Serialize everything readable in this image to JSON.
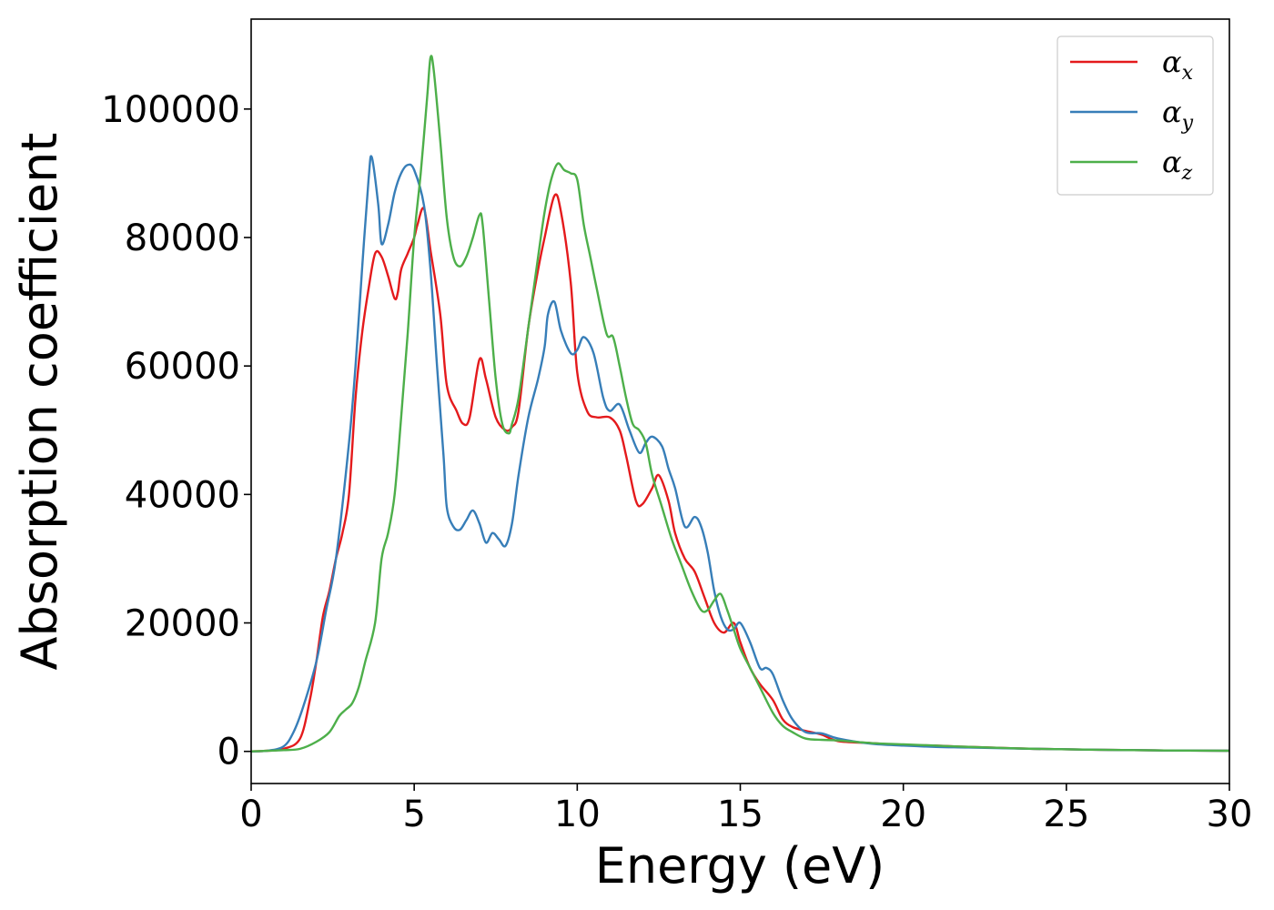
{
  "chart_data": {
    "type": "line",
    "xlabel": "Energy (eV)",
    "ylabel": "Absorption coefficient",
    "xlim": [
      0,
      30
    ],
    "ylim": [
      -5000,
      114000
    ],
    "xticks": [
      0,
      5,
      10,
      15,
      20,
      25,
      30
    ],
    "yticks": [
      0,
      20000,
      40000,
      60000,
      80000,
      100000
    ],
    "grid": false,
    "legend_position": "top-right",
    "series": [
      {
        "name": "α",
        "name_subscript": "x",
        "color": "#e41a1c",
        "x": [
          0,
          0.5,
          1.0,
          1.5,
          1.8,
          2.0,
          2.2,
          2.4,
          2.6,
          2.8,
          3.0,
          3.2,
          3.4,
          3.6,
          3.8,
          4.0,
          4.2,
          4.4,
          4.5,
          4.6,
          4.8,
          5.0,
          5.1,
          5.3,
          5.5,
          5.8,
          6.0,
          6.3,
          6.5,
          6.7,
          7.0,
          7.2,
          7.5,
          7.8,
          8.0,
          8.2,
          8.5,
          8.8,
          9.0,
          9.3,
          9.5,
          9.8,
          10.0,
          10.3,
          10.6,
          11.0,
          11.3,
          11.5,
          11.8,
          12.0,
          12.3,
          12.5,
          12.8,
          13.0,
          13.3,
          13.6,
          13.9,
          14.2,
          14.5,
          14.8,
          15.0,
          15.3,
          15.6,
          16.0,
          16.3,
          16.6,
          17.0,
          17.5,
          18.0,
          19.0,
          20.0,
          21.0,
          22.0,
          24.0,
          26.0,
          28.0,
          30.0
        ],
        "values": [
          0,
          100,
          400,
          2000,
          8000,
          14000,
          21000,
          25000,
          30000,
          34000,
          40000,
          55000,
          65000,
          72000,
          77500,
          77000,
          74000,
          70500,
          71500,
          75000,
          77500,
          80000,
          82000,
          84500,
          78000,
          68000,
          57000,
          53000,
          51000,
          52000,
          61000,
          58000,
          52000,
          50000,
          50500,
          53000,
          66000,
          75000,
          80000,
          86500,
          84000,
          73000,
          59000,
          53000,
          52000,
          52000,
          50000,
          46000,
          39000,
          38500,
          41000,
          43000,
          39000,
          34000,
          30000,
          28000,
          24000,
          20000,
          18500,
          20000,
          17000,
          13000,
          10500,
          8000,
          5000,
          3800,
          3200,
          2600,
          1600,
          1300,
          1000,
          900,
          700,
          400,
          250,
          150,
          100
        ]
      },
      {
        "name": "α",
        "name_subscript": "y",
        "color": "#377eb8",
        "x": [
          0,
          0.5,
          1.0,
          1.3,
          1.6,
          2.0,
          2.3,
          2.6,
          3.0,
          3.2,
          3.4,
          3.6,
          3.7,
          3.9,
          4.0,
          4.2,
          4.4,
          4.6,
          4.8,
          5.0,
          5.3,
          5.5,
          5.7,
          5.9,
          6.0,
          6.2,
          6.4,
          6.6,
          6.8,
          7.0,
          7.2,
          7.4,
          7.6,
          7.8,
          8.0,
          8.2,
          8.5,
          8.8,
          9.0,
          9.1,
          9.3,
          9.5,
          9.8,
          10.0,
          10.2,
          10.5,
          10.8,
          11.0,
          11.3,
          11.6,
          11.9,
          12.1,
          12.3,
          12.6,
          12.8,
          13.0,
          13.3,
          13.6,
          13.8,
          14.0,
          14.2,
          14.4,
          14.6,
          14.8,
          15.0,
          15.3,
          15.6,
          15.8,
          16.0,
          16.3,
          16.6,
          17.0,
          17.5,
          18.0,
          19.0,
          20.0,
          21.0,
          22.0,
          24.0,
          26.0,
          28.0,
          30.0
        ],
        "values": [
          0,
          100,
          800,
          3000,
          7000,
          14000,
          22000,
          30000,
          48000,
          60000,
          75000,
          89000,
          92500,
          85000,
          79000,
          82000,
          87000,
          90000,
          91300,
          90500,
          85000,
          75000,
          60000,
          46000,
          38000,
          35000,
          34500,
          36000,
          37500,
          35500,
          32500,
          34000,
          33000,
          32000,
          35500,
          43000,
          52000,
          58000,
          63000,
          68000,
          70000,
          65500,
          62000,
          62500,
          64500,
          62000,
          55000,
          53000,
          54000,
          50000,
          46500,
          48000,
          49000,
          47500,
          44000,
          41000,
          35000,
          36500,
          35000,
          31000,
          25000,
          21000,
          19000,
          19000,
          20000,
          17000,
          13000,
          13000,
          12000,
          8000,
          5000,
          3000,
          2800,
          2000,
          1200,
          900,
          700,
          600,
          400,
          250,
          150,
          100
        ]
      },
      {
        "name": "α",
        "name_subscript": "z",
        "color": "#4daf4a",
        "x": [
          0,
          0.5,
          1.0,
          1.5,
          2.0,
          2.4,
          2.7,
          2.9,
          3.1,
          3.3,
          3.5,
          3.8,
          4.0,
          4.2,
          4.4,
          4.6,
          4.8,
          5.0,
          5.2,
          5.4,
          5.5,
          5.6,
          5.8,
          6.0,
          6.2,
          6.4,
          6.6,
          6.8,
          7.0,
          7.1,
          7.3,
          7.5,
          7.7,
          7.9,
          8.0,
          8.2,
          8.5,
          8.8,
          9.0,
          9.2,
          9.4,
          9.6,
          9.8,
          10.0,
          10.2,
          10.4,
          10.6,
          10.9,
          11.1,
          11.3,
          11.5,
          11.7,
          11.9,
          12.1,
          12.3,
          12.6,
          12.9,
          13.2,
          13.5,
          13.8,
          14.0,
          14.2,
          14.4,
          14.6,
          14.8,
          15.0,
          15.3,
          15.6,
          16.0,
          16.3,
          16.6,
          17.0,
          17.5,
          18.0,
          19.0,
          20.0,
          21.0,
          22.0,
          24.0,
          26.0,
          28.0,
          30.0
        ],
        "values": [
          0,
          100,
          200,
          400,
          1500,
          3000,
          5500,
          6500,
          7500,
          10000,
          14000,
          20000,
          30000,
          34000,
          40000,
          52000,
          65000,
          80000,
          90000,
          102000,
          108000,
          106000,
          95000,
          83000,
          77000,
          75500,
          77000,
          80000,
          83500,
          82000,
          70000,
          58000,
          51000,
          49500,
          51000,
          55000,
          66000,
          77000,
          84000,
          89000,
          91500,
          90500,
          90000,
          89000,
          82000,
          77000,
          72000,
          65000,
          64500,
          60000,
          55000,
          51000,
          50000,
          48000,
          43000,
          38000,
          33000,
          29000,
          25000,
          22000,
          22000,
          23500,
          24500,
          22000,
          19000,
          16000,
          13000,
          10000,
          6000,
          4000,
          3000,
          2000,
          1800,
          1700,
          1300,
          1100,
          900,
          700,
          400,
          250,
          150,
          100
        ]
      }
    ]
  }
}
